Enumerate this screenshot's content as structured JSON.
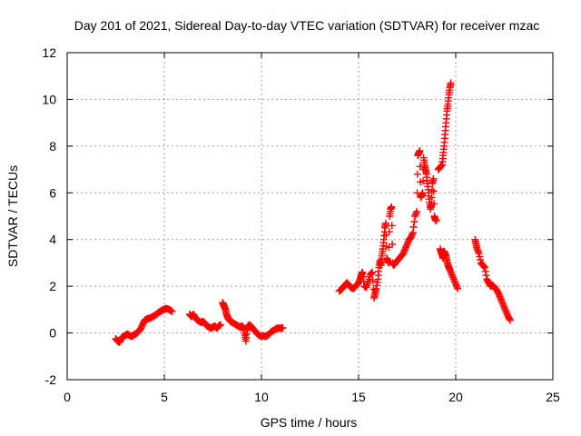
{
  "chart_data": {
    "type": "scatter",
    "title": "Day 201 of 2021, Sidereal Day-to-day VTEC variation (SDTVAR) for receiver mzac",
    "xlabel": "GPS time / hours",
    "ylabel": "SDTVAR / TECUs",
    "xlim": [
      0,
      25
    ],
    "ylim": [
      -2,
      12
    ],
    "xticks": [
      0,
      5,
      10,
      15,
      20,
      25
    ],
    "yticks": [
      -2,
      0,
      2,
      4,
      6,
      8,
      10,
      12
    ],
    "xtick_labels": [
      "0",
      "5",
      "10",
      "15",
      "20",
      "25"
    ],
    "ytick_labels": [
      "-2",
      "0",
      "2",
      "4",
      "6",
      "8",
      "10",
      "12"
    ],
    "grid": true,
    "legend": "none",
    "marker": "+",
    "color": "#ff0000",
    "series": [
      {
        "name": "SDTVAR",
        "segments": [
          [
            [
              2.5,
              -0.25
            ],
            [
              2.6,
              -0.35
            ],
            [
              2.7,
              -0.4
            ],
            [
              2.8,
              -0.2
            ],
            [
              2.9,
              -0.15
            ],
            [
              3.0,
              -0.1
            ],
            [
              3.1,
              -0.05
            ],
            [
              3.2,
              -0.1
            ],
            [
              3.3,
              -0.15
            ],
            [
              3.4,
              -0.1
            ],
            [
              3.5,
              -0.05
            ],
            [
              3.6,
              0.0
            ],
            [
              3.7,
              0.1
            ],
            [
              3.8,
              0.2
            ],
            [
              3.9,
              0.4
            ],
            [
              4.0,
              0.55
            ],
            [
              4.1,
              0.6
            ],
            [
              4.2,
              0.62
            ],
            [
              4.3,
              0.65
            ],
            [
              4.4,
              0.7
            ],
            [
              4.5,
              0.75
            ],
            [
              4.6,
              0.8
            ],
            [
              4.7,
              0.88
            ],
            [
              4.8,
              0.92
            ],
            [
              4.9,
              0.98
            ],
            [
              5.0,
              1.02
            ],
            [
              5.1,
              1.05
            ],
            [
              5.2,
              1.02
            ],
            [
              5.3,
              0.98
            ],
            [
              5.4,
              0.92
            ]
          ],
          [
            [
              6.3,
              0.8
            ],
            [
              6.4,
              0.7
            ],
            [
              6.5,
              0.8
            ],
            [
              6.6,
              0.65
            ],
            [
              6.7,
              0.55
            ],
            [
              6.8,
              0.5
            ],
            [
              6.9,
              0.45
            ],
            [
              7.0,
              0.5
            ],
            [
              7.1,
              0.4
            ],
            [
              7.2,
              0.3
            ],
            [
              7.3,
              0.25
            ],
            [
              7.4,
              0.2
            ],
            [
              7.5,
              0.25
            ],
            [
              7.6,
              0.3
            ],
            [
              7.7,
              0.2
            ],
            [
              7.8,
              0.3
            ],
            [
              7.9,
              0.35
            ]
          ],
          [
            [
              8.0,
              1.3
            ],
            [
              8.05,
              1.2
            ],
            [
              8.1,
              1.1
            ],
            [
              8.15,
              1.0
            ],
            [
              8.2,
              0.8
            ],
            [
              8.25,
              0.7
            ],
            [
              8.3,
              0.6
            ],
            [
              8.4,
              0.5
            ],
            [
              8.5,
              0.45
            ],
            [
              8.6,
              0.4
            ],
            [
              8.7,
              0.35
            ],
            [
              8.8,
              0.3
            ],
            [
              8.9,
              0.25
            ],
            [
              9.0,
              0.3
            ],
            [
              9.1,
              0.2
            ],
            [
              9.15,
              -0.1
            ],
            [
              9.2,
              -0.35
            ],
            [
              9.25,
              0.1
            ],
            [
              9.3,
              0.3
            ],
            [
              9.4,
              0.35
            ],
            [
              9.5,
              0.25
            ],
            [
              9.6,
              0.15
            ],
            [
              9.7,
              0.05
            ],
            [
              9.8,
              -0.05
            ],
            [
              9.9,
              -0.1
            ],
            [
              10.0,
              -0.15
            ],
            [
              10.1,
              -0.12
            ],
            [
              10.2,
              -0.15
            ],
            [
              10.3,
              -0.1
            ],
            [
              10.4,
              -0.05
            ],
            [
              10.5,
              0.05
            ],
            [
              10.6,
              0.1
            ],
            [
              10.7,
              0.15
            ],
            [
              10.8,
              0.2
            ],
            [
              10.9,
              0.2
            ],
            [
              11.0,
              0.2
            ],
            [
              11.1,
              0.22
            ]
          ],
          [
            [
              14.0,
              1.8
            ],
            [
              14.1,
              1.85
            ],
            [
              14.2,
              1.95
            ],
            [
              14.3,
              2.05
            ],
            [
              14.4,
              2.15
            ],
            [
              14.5,
              2.05
            ],
            [
              14.6,
              1.95
            ],
            [
              14.7,
              1.9
            ],
            [
              14.8,
              1.95
            ],
            [
              14.9,
              2.05
            ],
            [
              15.0,
              2.15
            ],
            [
              15.1,
              2.35
            ],
            [
              15.15,
              2.5
            ],
            [
              15.2,
              2.6
            ],
            [
              15.3,
              2.0
            ],
            [
              15.4,
              1.95
            ],
            [
              15.5,
              2.2
            ],
            [
              15.6,
              2.5
            ],
            [
              15.7,
              2.6
            ],
            [
              15.8,
              1.5
            ],
            [
              15.85,
              1.7
            ],
            [
              15.9,
              1.9
            ],
            [
              16.0,
              2.3
            ],
            [
              16.05,
              2.8
            ],
            [
              16.1,
              3.1
            ],
            [
              16.15,
              2.9
            ],
            [
              16.2,
              3.3
            ],
            [
              16.25,
              3.6
            ],
            [
              16.3,
              4.0
            ],
            [
              16.35,
              4.5
            ],
            [
              16.4,
              4.7
            ],
            [
              16.45,
              3.2
            ],
            [
              16.5,
              3.1
            ],
            [
              16.55,
              3.0
            ],
            [
              16.6,
              5.0
            ],
            [
              16.65,
              5.3
            ],
            [
              16.7,
              5.4
            ],
            [
              16.75,
              3.0
            ],
            [
              16.8,
              2.9
            ],
            [
              16.9,
              3.0
            ],
            [
              17.0,
              3.1
            ],
            [
              17.1,
              3.2
            ],
            [
              17.2,
              3.3
            ],
            [
              17.3,
              3.4
            ],
            [
              17.4,
              3.6
            ],
            [
              17.5,
              3.8
            ],
            [
              17.6,
              4.0
            ],
            [
              17.7,
              4.1
            ],
            [
              17.8,
              4.3
            ],
            [
              17.9,
              5.0
            ],
            [
              18.0,
              5.2
            ],
            [
              18.05,
              7.6
            ],
            [
              18.1,
              7.7
            ],
            [
              18.15,
              7.8
            ],
            [
              18.2,
              5.8
            ],
            [
              18.25,
              5.9
            ],
            [
              18.3,
              6.0
            ],
            [
              18.35,
              7.5
            ],
            [
              18.4,
              7.2
            ],
            [
              18.45,
              7.0
            ],
            [
              18.5,
              6.8
            ],
            [
              18.55,
              6.4
            ],
            [
              18.6,
              6.0
            ],
            [
              18.65,
              5.6
            ],
            [
              18.7,
              5.3
            ],
            [
              18.75,
              5.5
            ],
            [
              18.8,
              6.4
            ],
            [
              18.85,
              6.6
            ],
            [
              18.9,
              5.0
            ],
            [
              18.95,
              4.85
            ],
            [
              19.0,
              4.8
            ]
          ],
          [
            [
              19.1,
              7.0
            ],
            [
              19.2,
              7.1
            ],
            [
              19.3,
              7.2
            ],
            [
              19.35,
              7.6
            ],
            [
              19.4,
              8.0
            ],
            [
              19.45,
              8.5
            ],
            [
              19.5,
              9.0
            ],
            [
              19.55,
              9.5
            ],
            [
              19.6,
              9.8
            ],
            [
              19.65,
              10.2
            ],
            [
              19.7,
              10.5
            ],
            [
              19.75,
              10.7
            ]
          ],
          [
            [
              19.2,
              3.6
            ],
            [
              19.25,
              3.45
            ],
            [
              19.3,
              3.35
            ],
            [
              19.35,
              3.2
            ],
            [
              19.4,
              3.5
            ],
            [
              19.45,
              3.4
            ],
            [
              19.5,
              3.3
            ],
            [
              19.55,
              3.1
            ],
            [
              19.6,
              2.9
            ],
            [
              19.65,
              2.8
            ],
            [
              19.7,
              2.7
            ],
            [
              19.8,
              2.5
            ],
            [
              19.9,
              2.3
            ],
            [
              20.0,
              2.1
            ],
            [
              20.1,
              1.9
            ]
          ],
          [
            [
              21.0,
              4.0
            ],
            [
              21.05,
              3.8
            ],
            [
              21.1,
              3.6
            ],
            [
              21.2,
              3.4
            ],
            [
              21.3,
              3.0
            ],
            [
              21.4,
              2.9
            ],
            [
              21.5,
              2.8
            ],
            [
              21.6,
              2.3
            ],
            [
              21.7,
              2.15
            ],
            [
              21.8,
              2.0
            ],
            [
              21.9,
              2.05
            ],
            [
              22.0,
              1.95
            ],
            [
              22.1,
              1.85
            ],
            [
              22.2,
              1.7
            ],
            [
              22.3,
              1.5
            ],
            [
              22.4,
              1.3
            ],
            [
              22.5,
              1.1
            ],
            [
              22.6,
              0.9
            ],
            [
              22.7,
              0.7
            ],
            [
              22.8,
              0.55
            ]
          ]
        ]
      }
    ]
  }
}
